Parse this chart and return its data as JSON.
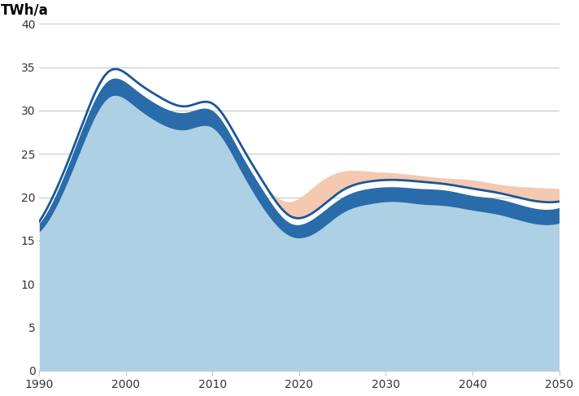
{
  "title": "TWh/a",
  "xlim": [
    1990,
    2050
  ],
  "ylim": [
    0,
    40
  ],
  "yticks": [
    0,
    5,
    10,
    15,
    20,
    25,
    30,
    35,
    40
  ],
  "xticks": [
    1990,
    2000,
    2010,
    2020,
    2030,
    2040,
    2050
  ],
  "background_color": "#ffffff",
  "grid_color": "#c8c8c8",
  "years": [
    1990,
    1992,
    1995,
    1998,
    2001,
    2004,
    2007,
    2010,
    2013,
    2016,
    2019,
    2022,
    2025,
    2028,
    2031,
    2034,
    2037,
    2040,
    2043,
    2046,
    2050
  ],
  "main_line": [
    17.2,
    21.0,
    28.5,
    34.5,
    33.5,
    31.5,
    30.5,
    30.8,
    26.5,
    21.5,
    17.8,
    18.5,
    20.8,
    21.8,
    22.0,
    21.8,
    21.5,
    21.0,
    20.5,
    19.8,
    19.5
  ],
  "peach_top": [
    17.2,
    21.0,
    28.5,
    34.5,
    33.5,
    31.5,
    30.5,
    30.8,
    26.5,
    21.5,
    19.5,
    21.5,
    23.0,
    23.0,
    22.8,
    22.5,
    22.2,
    22.0,
    21.5,
    21.2,
    21.0
  ],
  "peach_bottom": [
    17.2,
    21.0,
    28.5,
    34.5,
    33.5,
    31.5,
    30.5,
    30.8,
    26.5,
    21.5,
    17.8,
    18.5,
    20.8,
    21.8,
    22.0,
    21.8,
    21.5,
    21.0,
    20.5,
    19.8,
    19.5
  ],
  "dark_fill_top": [
    17.0,
    20.5,
    28.0,
    33.5,
    32.5,
    30.5,
    29.8,
    30.0,
    25.5,
    20.5,
    17.0,
    17.8,
    20.0,
    21.0,
    21.2,
    21.0,
    20.8,
    20.2,
    19.8,
    19.0,
    18.8
  ],
  "dark_fill_bot": [
    16.0,
    19.0,
    26.0,
    31.5,
    30.5,
    28.5,
    27.8,
    28.0,
    23.5,
    18.5,
    15.5,
    16.0,
    18.2,
    19.2,
    19.5,
    19.2,
    19.0,
    18.5,
    18.0,
    17.2,
    17.0
  ],
  "mid_band_top": [
    16.0,
    19.0,
    26.0,
    31.5,
    30.5,
    28.5,
    27.8,
    28.0,
    23.5,
    18.5,
    15.5,
    16.0,
    18.2,
    19.2,
    19.5,
    19.2,
    19.0,
    18.5,
    18.0,
    17.2,
    17.0
  ],
  "mid_band_bot": [
    0,
    0,
    0,
    0,
    0,
    0,
    0,
    0,
    0,
    0,
    0,
    0,
    0,
    0,
    0,
    0,
    0,
    0,
    0,
    0,
    0
  ],
  "light_band_top": [
    16.5,
    20.0,
    27.0,
    33.0,
    32.0,
    30.0,
    29.2,
    29.2,
    25.0,
    20.0,
    16.5,
    17.0,
    19.0,
    20.0,
    20.5,
    20.2,
    20.0,
    19.5,
    19.0,
    18.2,
    18.0
  ],
  "light_band_bot": [
    0,
    0,
    0,
    0,
    0,
    0,
    0,
    0,
    0,
    0,
    0,
    0,
    0,
    0,
    0,
    0,
    0,
    0,
    0,
    0,
    0
  ],
  "color_main_line": "#1a5799",
  "color_peach": "#f5c9b0",
  "color_dark_fill": "#2a6caa",
  "color_mid_band": "#8cbcd8",
  "color_light_band": "#d6e9f5",
  "line_width": 2.0
}
